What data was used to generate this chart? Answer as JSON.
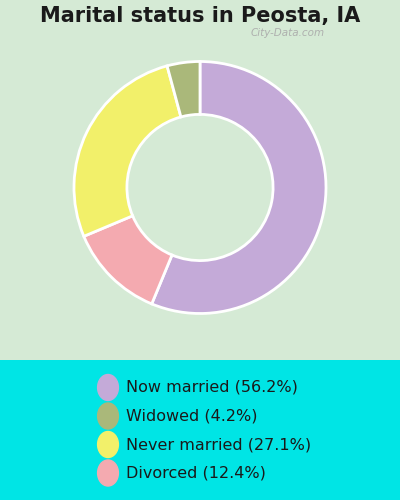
{
  "title": "Marital status in Peosta, IA",
  "categories": [
    "Now married",
    "Widowed",
    "Never married",
    "Divorced"
  ],
  "values": [
    56.2,
    4.2,
    27.1,
    12.4
  ],
  "colors": [
    "#c4aad8",
    "#aab87a",
    "#f2f06a",
    "#f4aab0"
  ],
  "legend_labels": [
    "Now married (56.2%)",
    "Widowed (4.2%)",
    "Never married (27.1%)",
    "Divorced (12.4%)"
  ],
  "bg_color_outer": "#00e5e5",
  "bg_color_inner": "#d5ead5",
  "title_fontsize": 15,
  "legend_fontsize": 11.5,
  "watermark": "City-Data.com"
}
